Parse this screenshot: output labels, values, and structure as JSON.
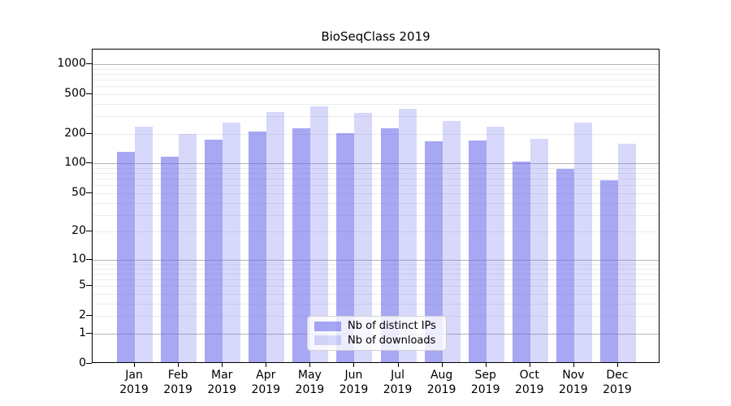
{
  "title": "BioSeqClass 2019",
  "chart_data": {
    "type": "bar",
    "title": "BioSeqClass 2019",
    "categories": [
      "Jan 2019",
      "Feb 2019",
      "Mar 2019",
      "Apr 2019",
      "May 2019",
      "Jun 2019",
      "Jul 2019",
      "Aug 2019",
      "Sep 2019",
      "Oct 2019",
      "Nov 2019",
      "Dec 2019"
    ],
    "x_tick_month": [
      "Jan",
      "Feb",
      "Mar",
      "Apr",
      "May",
      "Jun",
      "Jul",
      "Aug",
      "Sep",
      "Oct",
      "Nov",
      "Dec"
    ],
    "x_tick_year": "2019",
    "series": [
      {
        "name": "Nb of distinct IPs",
        "color": "#a7a7f1",
        "values": [
          127,
          112,
          168,
          202,
          217,
          196,
          220,
          162,
          165,
          100,
          85,
          65
        ]
      },
      {
        "name": "Nb of downloads",
        "color": "#d9d9f8",
        "values": [
          228,
          193,
          248,
          320,
          362,
          310,
          340,
          260,
          225,
          170,
          250,
          153
        ]
      }
    ],
    "y_scale": "log1p",
    "y_ticks": [
      0,
      1,
      2,
      5,
      10,
      20,
      50,
      100,
      200,
      500,
      1000
    ],
    "y_tick_labels": [
      "0",
      "1",
      "2",
      "5",
      "10",
      "20",
      "50",
      "100",
      "200",
      "500",
      "1000"
    ],
    "ylim": [
      0,
      1400
    ],
    "grid": true,
    "grid_minor_color": "#ebebeb",
    "grid_major_color": "#b4b4b4",
    "legend_position": "lower center",
    "xlabel": "",
    "ylabel": ""
  },
  "legend": {
    "items": [
      {
        "label": "Nb of distinct IPs"
      },
      {
        "label": "Nb of downloads"
      }
    ]
  },
  "colors": {
    "bar_distinct_ips": "#a7a7f1",
    "bar_downloads": "#d9d9f8",
    "spine": "#000000",
    "background": "#ffffff"
  }
}
